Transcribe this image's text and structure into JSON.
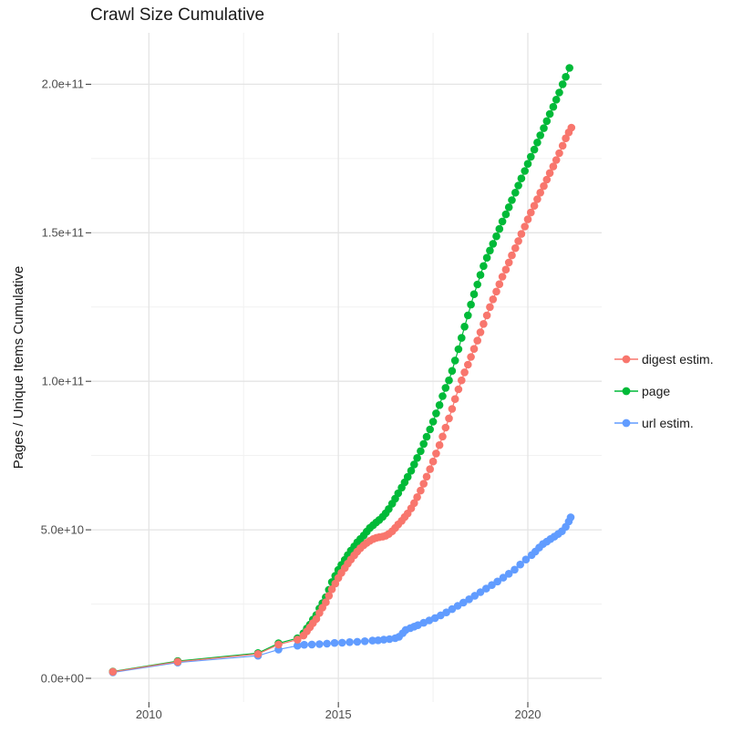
{
  "title": "Crawl Size Cumulative",
  "y_axis": {
    "title": "Pages / Unique Items Cumulative"
  },
  "chart_data": {
    "type": "line",
    "title": "Crawl Size Cumulative",
    "xlabel": "",
    "ylabel": "Pages / Unique Items Cumulative",
    "grid": true,
    "legend_position": "right",
    "unit": "point values given as [year, pages_in_billions(1e9)]",
    "xlim": [
      2008.5,
      2021.95
    ],
    "ylim_e9": [
      -8,
      215
    ],
    "x_ticks": [
      {
        "value": 2010,
        "label": "2010"
      },
      {
        "value": 2015,
        "label": "2015"
      },
      {
        "value": 2020,
        "label": "2020"
      }
    ],
    "x_minor": [
      2012.5,
      2017.5
    ],
    "y_ticks": [
      {
        "value_e9": 0,
        "label": "0.0e+00"
      },
      {
        "value_e9": 50,
        "label": "5.0e+10"
      },
      {
        "value_e9": 100,
        "label": "1.0e+11"
      },
      {
        "value_e9": 150,
        "label": "1.5e+11"
      },
      {
        "value_e9": 200,
        "label": "2.0e+11"
      }
    ],
    "y_minor_e9": [
      25,
      75,
      125,
      175
    ],
    "series": [
      {
        "name": "digest estim.",
        "color": "#F8766D",
        "points": [
          [
            2009.05,
            2.2
          ],
          [
            2010.76,
            5.6
          ],
          [
            2012.88,
            8.2
          ],
          [
            2013.42,
            11.4
          ],
          [
            2013.92,
            13.0
          ],
          [
            2014.08,
            14.4
          ],
          [
            2014.17,
            15.8
          ],
          [
            2014.25,
            17.2
          ],
          [
            2014.33,
            18.6
          ],
          [
            2014.42,
            20.0
          ],
          [
            2014.5,
            22.0
          ],
          [
            2014.58,
            23.8
          ],
          [
            2014.67,
            25.6
          ],
          [
            2014.75,
            27.8
          ],
          [
            2014.83,
            30.0
          ],
          [
            2014.92,
            31.9
          ],
          [
            2015.0,
            33.8
          ],
          [
            2015.08,
            35.5
          ],
          [
            2015.17,
            37.1
          ],
          [
            2015.25,
            38.6
          ],
          [
            2015.33,
            40.0
          ],
          [
            2015.42,
            41.4
          ],
          [
            2015.5,
            42.7
          ],
          [
            2015.58,
            43.8
          ],
          [
            2015.67,
            44.8
          ],
          [
            2015.75,
            45.6
          ],
          [
            2015.83,
            46.3
          ],
          [
            2015.92,
            46.9
          ],
          [
            2016.0,
            47.3
          ],
          [
            2016.08,
            47.5
          ],
          [
            2016.17,
            47.7
          ],
          [
            2016.25,
            48.0
          ],
          [
            2016.33,
            48.6
          ],
          [
            2016.42,
            49.5
          ],
          [
            2016.5,
            50.6
          ],
          [
            2016.58,
            51.8
          ],
          [
            2016.67,
            53.0
          ],
          [
            2016.75,
            54.3
          ],
          [
            2016.83,
            55.5
          ],
          [
            2016.92,
            57.2
          ],
          [
            2017.0,
            59.0
          ],
          [
            2017.08,
            61.0
          ],
          [
            2017.17,
            63.2
          ],
          [
            2017.25,
            65.5
          ],
          [
            2017.33,
            67.9
          ],
          [
            2017.42,
            70.4
          ],
          [
            2017.5,
            73.0
          ],
          [
            2017.58,
            75.7
          ],
          [
            2017.67,
            78.5
          ],
          [
            2017.75,
            81.4
          ],
          [
            2017.83,
            84.4
          ],
          [
            2017.92,
            87.5
          ],
          [
            2018.0,
            90.7
          ],
          [
            2018.08,
            94.0
          ],
          [
            2018.17,
            97.3
          ],
          [
            2018.25,
            100.3
          ],
          [
            2018.33,
            103.0
          ],
          [
            2018.42,
            105.6
          ],
          [
            2018.5,
            108.2
          ],
          [
            2018.58,
            110.9
          ],
          [
            2018.67,
            113.7
          ],
          [
            2018.75,
            116.5
          ],
          [
            2018.83,
            119.3
          ],
          [
            2018.92,
            122.2
          ],
          [
            2019.0,
            125.0
          ],
          [
            2019.08,
            127.6
          ],
          [
            2019.17,
            130.2
          ],
          [
            2019.25,
            132.7
          ],
          [
            2019.33,
            135.2
          ],
          [
            2019.42,
            137.6
          ],
          [
            2019.5,
            140.0
          ],
          [
            2019.58,
            142.4
          ],
          [
            2019.67,
            144.8
          ],
          [
            2019.75,
            147.2
          ],
          [
            2019.83,
            149.6
          ],
          [
            2019.92,
            152.1
          ],
          [
            2020.0,
            154.5
          ],
          [
            2020.08,
            156.8
          ],
          [
            2020.17,
            159.1
          ],
          [
            2020.25,
            161.3
          ],
          [
            2020.33,
            163.5
          ],
          [
            2020.42,
            165.7
          ],
          [
            2020.5,
            167.9
          ],
          [
            2020.58,
            170.1
          ],
          [
            2020.67,
            172.3
          ],
          [
            2020.75,
            174.5
          ],
          [
            2020.83,
            176.8
          ],
          [
            2020.92,
            179.3
          ],
          [
            2021.0,
            181.8
          ],
          [
            2021.08,
            183.8
          ],
          [
            2021.15,
            185.4
          ]
        ]
      },
      {
        "name": "page",
        "color": "#00BA38",
        "points": [
          [
            2009.05,
            2.3
          ],
          [
            2010.76,
            5.8
          ],
          [
            2012.88,
            8.5
          ],
          [
            2013.42,
            11.8
          ],
          [
            2013.92,
            13.5
          ],
          [
            2014.08,
            15.2
          ],
          [
            2014.17,
            16.8
          ],
          [
            2014.25,
            18.1
          ],
          [
            2014.33,
            19.8
          ],
          [
            2014.42,
            21.3
          ],
          [
            2014.5,
            23.5
          ],
          [
            2014.58,
            25.3
          ],
          [
            2014.67,
            27.3
          ],
          [
            2014.75,
            29.8
          ],
          [
            2014.83,
            32.4
          ],
          [
            2014.92,
            34.5
          ],
          [
            2015.0,
            36.5
          ],
          [
            2015.08,
            38.2
          ],
          [
            2015.17,
            39.9
          ],
          [
            2015.25,
            41.5
          ],
          [
            2015.33,
            43.0
          ],
          [
            2015.42,
            44.4
          ],
          [
            2015.5,
            45.8
          ],
          [
            2015.58,
            46.9
          ],
          [
            2015.67,
            48.1
          ],
          [
            2015.75,
            49.4
          ],
          [
            2015.83,
            50.6
          ],
          [
            2015.92,
            51.6
          ],
          [
            2016.0,
            52.5
          ],
          [
            2016.08,
            53.3
          ],
          [
            2016.17,
            54.4
          ],
          [
            2016.25,
            55.6
          ],
          [
            2016.33,
            57.0
          ],
          [
            2016.42,
            58.8
          ],
          [
            2016.5,
            60.5
          ],
          [
            2016.58,
            62.3
          ],
          [
            2016.67,
            64.2
          ],
          [
            2016.75,
            66.0
          ],
          [
            2016.83,
            67.8
          ],
          [
            2016.92,
            69.9
          ],
          [
            2017.0,
            72.0
          ],
          [
            2017.08,
            74.2
          ],
          [
            2017.17,
            76.5
          ],
          [
            2017.25,
            78.9
          ],
          [
            2017.33,
            81.3
          ],
          [
            2017.42,
            83.8
          ],
          [
            2017.5,
            86.4
          ],
          [
            2017.58,
            89.2
          ],
          [
            2017.67,
            92.0
          ],
          [
            2017.75,
            95.0
          ],
          [
            2017.83,
            97.8
          ],
          [
            2017.92,
            100.3
          ],
          [
            2018.0,
            103.5
          ],
          [
            2018.08,
            107.0
          ],
          [
            2018.17,
            110.8
          ],
          [
            2018.25,
            114.6
          ],
          [
            2018.33,
            118.4
          ],
          [
            2018.42,
            122.2
          ],
          [
            2018.5,
            125.8
          ],
          [
            2018.58,
            129.3
          ],
          [
            2018.67,
            132.6
          ],
          [
            2018.75,
            135.8
          ],
          [
            2018.83,
            138.8
          ],
          [
            2018.92,
            141.6
          ],
          [
            2019.0,
            144.0
          ],
          [
            2019.08,
            146.3
          ],
          [
            2019.17,
            148.8
          ],
          [
            2019.25,
            151.3
          ],
          [
            2019.33,
            153.8
          ],
          [
            2019.42,
            156.2
          ],
          [
            2019.5,
            158.6
          ],
          [
            2019.58,
            161.0
          ],
          [
            2019.67,
            163.5
          ],
          [
            2019.75,
            165.9
          ],
          [
            2019.83,
            168.3
          ],
          [
            2019.92,
            170.8
          ],
          [
            2020.0,
            173.2
          ],
          [
            2020.08,
            175.6
          ],
          [
            2020.17,
            178.0
          ],
          [
            2020.25,
            180.4
          ],
          [
            2020.33,
            182.8
          ],
          [
            2020.42,
            185.2
          ],
          [
            2020.5,
            187.6
          ],
          [
            2020.58,
            190.0
          ],
          [
            2020.67,
            192.4
          ],
          [
            2020.75,
            194.8
          ],
          [
            2020.83,
            197.2
          ],
          [
            2020.92,
            200.0
          ],
          [
            2021.0,
            202.5
          ],
          [
            2021.1,
            205.5
          ]
        ]
      },
      {
        "name": "url estim.",
        "color": "#619CFF",
        "points": [
          [
            2009.05,
            2.0
          ],
          [
            2010.76,
            5.3
          ],
          [
            2012.88,
            7.6
          ],
          [
            2013.42,
            9.7
          ],
          [
            2013.92,
            11.0
          ],
          [
            2014.1,
            11.3
          ],
          [
            2014.3,
            11.4
          ],
          [
            2014.5,
            11.5
          ],
          [
            2014.7,
            11.7
          ],
          [
            2014.9,
            11.9
          ],
          [
            2015.1,
            12.0
          ],
          [
            2015.3,
            12.2
          ],
          [
            2015.5,
            12.3
          ],
          [
            2015.7,
            12.5
          ],
          [
            2015.9,
            12.7
          ],
          [
            2016.05,
            12.8
          ],
          [
            2016.2,
            13.0
          ],
          [
            2016.35,
            13.2
          ],
          [
            2016.5,
            13.5
          ],
          [
            2016.6,
            14.0
          ],
          [
            2016.7,
            15.2
          ],
          [
            2016.78,
            16.3
          ],
          [
            2016.9,
            16.9
          ],
          [
            2017.0,
            17.4
          ],
          [
            2017.1,
            17.9
          ],
          [
            2017.25,
            18.7
          ],
          [
            2017.4,
            19.5
          ],
          [
            2017.55,
            20.3
          ],
          [
            2017.7,
            21.2
          ],
          [
            2017.85,
            22.2
          ],
          [
            2018.0,
            23.3
          ],
          [
            2018.15,
            24.4
          ],
          [
            2018.3,
            25.5
          ],
          [
            2018.45,
            26.6
          ],
          [
            2018.6,
            27.8
          ],
          [
            2018.75,
            29.0
          ],
          [
            2018.9,
            30.2
          ],
          [
            2019.05,
            31.4
          ],
          [
            2019.2,
            32.6
          ],
          [
            2019.35,
            33.9
          ],
          [
            2019.5,
            35.2
          ],
          [
            2019.65,
            36.6
          ],
          [
            2019.8,
            38.3
          ],
          [
            2019.95,
            40.0
          ],
          [
            2020.1,
            41.5
          ],
          [
            2020.2,
            42.7
          ],
          [
            2020.3,
            44.0
          ],
          [
            2020.4,
            45.2
          ],
          [
            2020.5,
            46.0
          ],
          [
            2020.6,
            46.9
          ],
          [
            2020.7,
            47.7
          ],
          [
            2020.8,
            48.6
          ],
          [
            2020.9,
            49.5
          ],
          [
            2021.0,
            51.0
          ],
          [
            2021.08,
            52.8
          ],
          [
            2021.13,
            54.2
          ]
        ]
      }
    ]
  },
  "colors": {
    "grid_major": "#e4e4e4",
    "grid_minor": "#f1f1f1",
    "tick": "#333333",
    "tick_label": "#4d4d4d"
  }
}
